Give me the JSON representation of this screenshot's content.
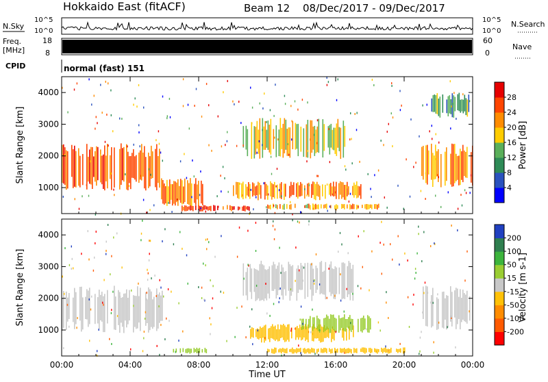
{
  "header": {
    "station": "Hokkaido East (fitACF)",
    "beam": "Beam 12",
    "date_range": "08/Dec/2017 - 09/Dec/2017"
  },
  "nsky": {
    "label": "N.Sky",
    "ticks": [
      "10^5",
      "10^0"
    ],
    "right_label": "N.Search",
    "right_ticks": [
      "10^5",
      "10^0"
    ]
  },
  "freq": {
    "label_lines": [
      "Freq.",
      "[MHz]"
    ],
    "ticks": [
      "18",
      "8"
    ],
    "right_label": "Nave",
    "right_ticks": [
      "60",
      "0"
    ]
  },
  "cpid": {
    "label": "CPID",
    "text": "normal (fast) 151"
  },
  "colors": {
    "power_scale": [
      "#0000ff",
      "#2a52be",
      "#2e8b57",
      "#5aaf5a",
      "#ffcc00",
      "#ff8c00",
      "#ff4500",
      "#e60000"
    ],
    "velocity_scale": [
      "#2040c0",
      "#2f7f4f",
      "#3cb43c",
      "#9acd32",
      "#c8c8c8",
      "#ffc107",
      "#ff8c00",
      "#ff5a00",
      "#ff0000"
    ]
  },
  "chart_data": [
    {
      "type": "heatmap",
      "title": "",
      "xlabel": "Time UT",
      "ylabel": "Slant Range [km]",
      "x_ticks": [
        "00:00",
        "04:00",
        "08:00",
        "12:00",
        "16:00",
        "20:00",
        "00:00"
      ],
      "x_range_hours": [
        0,
        24
      ],
      "y_ticks": [
        1000,
        2000,
        3000,
        4000
      ],
      "y_range": [
        180,
        4500
      ],
      "colorbar": {
        "label": "Power [dB]",
        "ticks": [
          4,
          8,
          12,
          16,
          20,
          24,
          28
        ],
        "range": [
          0,
          32
        ]
      },
      "regions": [
        {
          "t": [
            0.0,
            5.8
          ],
          "r": [
            900,
            2400
          ],
          "value": 25
        },
        {
          "t": [
            5.8,
            8.5
          ],
          "r": [
            400,
            1300
          ],
          "value": 22
        },
        {
          "t": [
            7.0,
            11.0
          ],
          "r": [
            250,
            450
          ],
          "value": 28
        },
        {
          "t": [
            10.0,
            17.5
          ],
          "r": [
            600,
            1200
          ],
          "value": 22
        },
        {
          "t": [
            10.5,
            16.5
          ],
          "r": [
            1900,
            3200
          ],
          "value": 18
        },
        {
          "t": [
            12.0,
            18.5
          ],
          "r": [
            300,
            500
          ],
          "value": 20
        },
        {
          "t": [
            21.0,
            24.0
          ],
          "r": [
            1000,
            2400
          ],
          "value": 22
        },
        {
          "t": [
            21.5,
            23.8
          ],
          "r": [
            3200,
            4000
          ],
          "value": 12
        }
      ]
    },
    {
      "type": "heatmap",
      "title": "",
      "xlabel": "Time UT",
      "ylabel": "Slant Range [km]",
      "x_ticks": [
        "00:00",
        "04:00",
        "08:00",
        "12:00",
        "16:00",
        "20:00",
        "00:00"
      ],
      "x_range_hours": [
        0,
        24
      ],
      "y_ticks": [
        1000,
        2000,
        3000,
        4000
      ],
      "y_range": [
        180,
        4500
      ],
      "colorbar": {
        "label": "Velocity [m s-1]",
        "ticks": [
          200,
          100,
          50,
          15,
          -15,
          -50,
          -100,
          -200
        ],
        "range": [
          -250,
          250
        ]
      },
      "regions": [
        {
          "t": [
            0.0,
            6.0
          ],
          "r": [
            900,
            2400
          ],
          "value": 0
        },
        {
          "t": [
            6.5,
            8.5
          ],
          "r": [
            250,
            450
          ],
          "value": 60
        },
        {
          "t": [
            11.0,
            17.0
          ],
          "r": [
            600,
            1200
          ],
          "value": -40
        },
        {
          "t": [
            14.0,
            18.0
          ],
          "r": [
            900,
            1500
          ],
          "value": 55
        },
        {
          "t": [
            10.5,
            17.0
          ],
          "r": [
            1900,
            3200
          ],
          "value": 0
        },
        {
          "t": [
            12.0,
            20.0
          ],
          "r": [
            250,
            450
          ],
          "value": -60
        },
        {
          "t": [
            21.0,
            24.0
          ],
          "r": [
            1000,
            2400
          ],
          "value": 0
        }
      ]
    }
  ]
}
